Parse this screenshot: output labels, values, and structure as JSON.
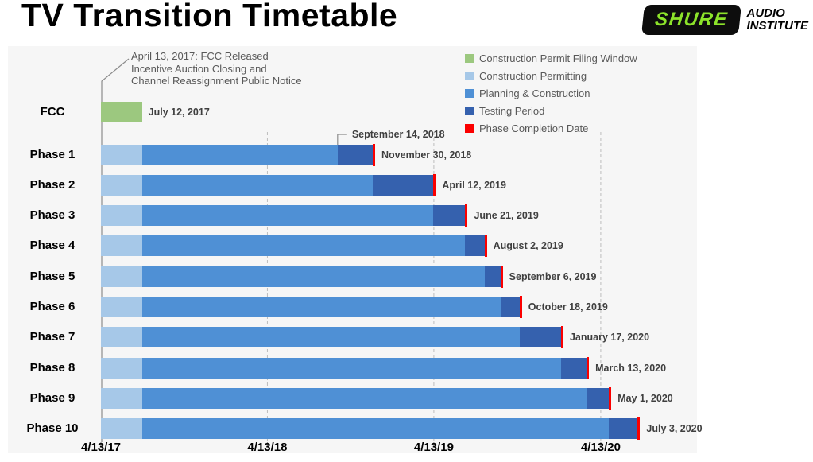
{
  "title": "TV Transition Timetable",
  "logo": {
    "brand": "SHURE",
    "org_line1": "AUDIO",
    "org_line2": "INSTITUTE",
    "brand_color": "#8ce32a",
    "badge_bg": "#0d0d0d"
  },
  "chart_data": {
    "type": "gantt",
    "timeline": {
      "start": "2017-04-13",
      "end": "2020-11-10",
      "tick_dates": [
        "2017-04-13",
        "2018-04-13",
        "2019-04-13",
        "2020-04-13"
      ],
      "tick_labels": [
        "4/13/17",
        "4/13/18",
        "4/13/19",
        "4/13/20"
      ],
      "gridline_dates": [
        "2018-04-13",
        "2019-04-13",
        "2020-04-13"
      ]
    },
    "colors": {
      "filing_window": "#9cc87f",
      "permitting": "#a6c8e8",
      "planning": "#4f90d5",
      "testing": "#3561ae",
      "completion": "#fb0000",
      "grid": "#bdbdbd",
      "axis": "#8c8c8c",
      "chart_bg": "#f6f6f6"
    },
    "legend": [
      {
        "kind": "filing_window",
        "label": "Construction Permit Filing Window"
      },
      {
        "kind": "permitting",
        "label": "Construction Permitting"
      },
      {
        "kind": "planning",
        "label": "Planning & Construction"
      },
      {
        "kind": "testing",
        "label": "Testing Period"
      },
      {
        "kind": "completion",
        "label": "Phase Completion Date"
      }
    ],
    "annotations": [
      {
        "id": "fcc-note",
        "lines": [
          "April 13, 2017: FCC Released",
          "Incentive Auction Closing and",
          "Channel Reassignment Public Notice"
        ],
        "points_to": "2017-04-13"
      },
      {
        "id": "phase1-testing-start",
        "text": "September 14, 2018",
        "date": "2018-09-14"
      }
    ],
    "rows": [
      {
        "label": "FCC",
        "end_label": "July 12, 2017",
        "segments": [
          {
            "kind": "filing_window",
            "start": "2017-04-13",
            "end": "2017-07-12"
          }
        ]
      },
      {
        "label": "Phase 1",
        "end_label": "November 30, 2018",
        "completion": "2018-11-30",
        "segments": [
          {
            "kind": "permitting",
            "start": "2017-04-13",
            "end": "2017-07-12"
          },
          {
            "kind": "planning",
            "start": "2017-07-12",
            "end": "2018-09-14"
          },
          {
            "kind": "testing",
            "start": "2018-09-14",
            "end": "2018-11-30"
          }
        ]
      },
      {
        "label": "Phase 2",
        "end_label": "April 12, 2019",
        "completion": "2019-04-12",
        "segments": [
          {
            "kind": "permitting",
            "start": "2017-04-13",
            "end": "2017-07-12"
          },
          {
            "kind": "planning",
            "start": "2017-07-12",
            "end": "2018-11-30"
          },
          {
            "kind": "testing",
            "start": "2018-11-30",
            "end": "2019-04-12"
          }
        ]
      },
      {
        "label": "Phase 3",
        "end_label": "June 21, 2019",
        "completion": "2019-06-21",
        "segments": [
          {
            "kind": "permitting",
            "start": "2017-04-13",
            "end": "2017-07-12"
          },
          {
            "kind": "planning",
            "start": "2017-07-12",
            "end": "2019-04-12"
          },
          {
            "kind": "testing",
            "start": "2019-04-12",
            "end": "2019-06-21"
          }
        ]
      },
      {
        "label": "Phase 4",
        "end_label": "August 2, 2019",
        "completion": "2019-08-02",
        "segments": [
          {
            "kind": "permitting",
            "start": "2017-04-13",
            "end": "2017-07-12"
          },
          {
            "kind": "planning",
            "start": "2017-07-12",
            "end": "2019-06-21"
          },
          {
            "kind": "testing",
            "start": "2019-06-21",
            "end": "2019-08-02"
          }
        ]
      },
      {
        "label": "Phase 5",
        "end_label": "September 6, 2019",
        "completion": "2019-09-06",
        "segments": [
          {
            "kind": "permitting",
            "start": "2017-04-13",
            "end": "2017-07-12"
          },
          {
            "kind": "planning",
            "start": "2017-07-12",
            "end": "2019-08-02"
          },
          {
            "kind": "testing",
            "start": "2019-08-02",
            "end": "2019-09-06"
          }
        ]
      },
      {
        "label": "Phase 6",
        "end_label": "October 18, 2019",
        "completion": "2019-10-18",
        "segments": [
          {
            "kind": "permitting",
            "start": "2017-04-13",
            "end": "2017-07-12"
          },
          {
            "kind": "planning",
            "start": "2017-07-12",
            "end": "2019-09-06"
          },
          {
            "kind": "testing",
            "start": "2019-09-06",
            "end": "2019-10-18"
          }
        ]
      },
      {
        "label": "Phase 7",
        "end_label": "January 17, 2020",
        "completion": "2020-01-17",
        "segments": [
          {
            "kind": "permitting",
            "start": "2017-04-13",
            "end": "2017-07-12"
          },
          {
            "kind": "planning",
            "start": "2017-07-12",
            "end": "2019-10-18"
          },
          {
            "kind": "testing",
            "start": "2019-10-18",
            "end": "2020-01-17"
          }
        ]
      },
      {
        "label": "Phase 8",
        "end_label": "March 13, 2020",
        "completion": "2020-03-13",
        "segments": [
          {
            "kind": "permitting",
            "start": "2017-04-13",
            "end": "2017-07-12"
          },
          {
            "kind": "planning",
            "start": "2017-07-12",
            "end": "2020-01-17"
          },
          {
            "kind": "testing",
            "start": "2020-01-17",
            "end": "2020-03-13"
          }
        ]
      },
      {
        "label": "Phase 9",
        "end_label": "May 1, 2020",
        "completion": "2020-05-01",
        "segments": [
          {
            "kind": "permitting",
            "start": "2017-04-13",
            "end": "2017-07-12"
          },
          {
            "kind": "planning",
            "start": "2017-07-12",
            "end": "2020-03-13"
          },
          {
            "kind": "testing",
            "start": "2020-03-13",
            "end": "2020-05-01"
          }
        ]
      },
      {
        "label": "Phase 10",
        "end_label": "July 3, 2020",
        "completion": "2020-07-03",
        "segments": [
          {
            "kind": "permitting",
            "start": "2017-04-13",
            "end": "2017-07-12"
          },
          {
            "kind": "planning",
            "start": "2017-07-12",
            "end": "2020-05-01"
          },
          {
            "kind": "testing",
            "start": "2020-05-01",
            "end": "2020-07-03"
          }
        ]
      }
    ]
  }
}
